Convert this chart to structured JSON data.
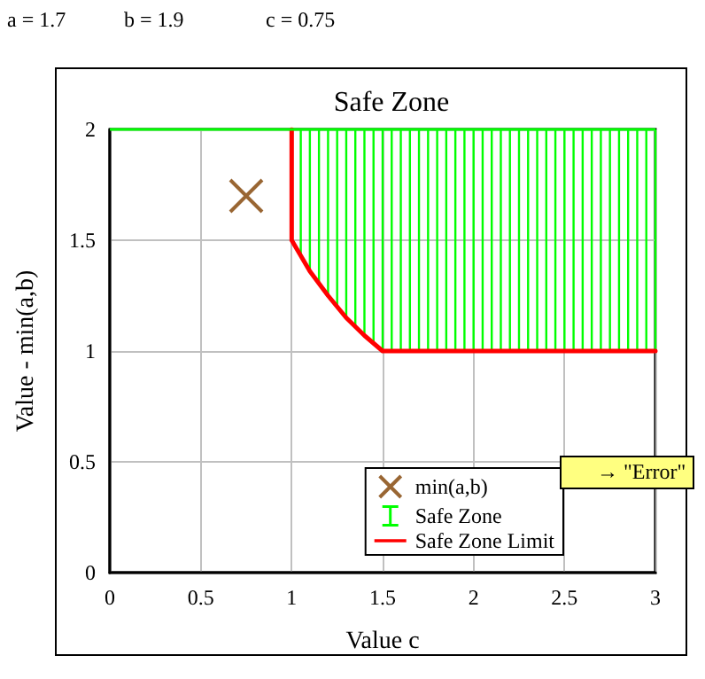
{
  "chart_data": {
    "type": "line",
    "title": "Safe Zone",
    "xlabel": "Value c",
    "ylabel": "Value - min(a,b)",
    "annotations": [
      "a = 1.7",
      "b = 1.9",
      "c = 0.75",
      "→ \"Error\""
    ],
    "xlim": [
      0,
      3
    ],
    "ylim": [
      0,
      2
    ],
    "xticks": [
      0,
      0.5,
      1,
      1.5,
      2,
      2.5,
      3
    ],
    "yticks": [
      0,
      0.5,
      1,
      1.5,
      2
    ],
    "grid": true,
    "legend": "bottom right",
    "ref_lines": [
      {
        "axis": "y",
        "value": 2,
        "color": "#00ff00"
      }
    ],
    "series": [
      {
        "name": "min(a,b)",
        "type": "scatter",
        "marker": "cross",
        "color": "#804000",
        "x": [
          0.75
        ],
        "values": [
          1.7
        ]
      },
      {
        "name": "Safe Zone",
        "type": "bar",
        "color": "#00ff00",
        "x": [
          1.05,
          1.1,
          1.15,
          1.2,
          1.25,
          1.3,
          1.35,
          1.4,
          1.45,
          1.5,
          1.55,
          1.6,
          1.65,
          1.7,
          1.75,
          1.8,
          1.85,
          1.9,
          1.95,
          2,
          2.05,
          2.1,
          2.15,
          2.2,
          2.25,
          2.3,
          2.35,
          2.4,
          2.45,
          2.5,
          2.55,
          2.6,
          2.65,
          2.7,
          2.75,
          2.8,
          2.85,
          2.9,
          2.95,
          3
        ],
        "base": [
          1.43,
          1.36,
          1.3,
          1.25,
          1.2,
          1.15,
          1.11,
          1.07,
          1.03,
          1,
          1,
          1,
          1,
          1,
          1,
          1,
          1,
          1,
          1,
          1,
          1,
          1,
          1,
          1,
          1,
          1,
          1,
          1,
          1,
          1,
          1,
          1,
          1,
          1,
          1,
          1,
          1,
          1,
          1,
          1
        ],
        "values": [
          0.57,
          0.64,
          0.7,
          0.75,
          0.8,
          0.85,
          0.89,
          0.93,
          0.97,
          1,
          1,
          1,
          1,
          1,
          1,
          1,
          1,
          1,
          1,
          1,
          1,
          1,
          1,
          1,
          1,
          1,
          1,
          1,
          1,
          1,
          1,
          1,
          1,
          1,
          1,
          1,
          1,
          1,
          1,
          1
        ]
      },
      {
        "name": "Safe Zone Limit",
        "marker": "none",
        "color": "#ff0000",
        "x": [
          1,
          1,
          1.1,
          1.2,
          1.3,
          1.4,
          1.5,
          3
        ],
        "values": [
          2,
          1.5,
          1.36,
          1.25,
          1.15,
          1.07,
          1,
          1
        ]
      }
    ]
  }
}
